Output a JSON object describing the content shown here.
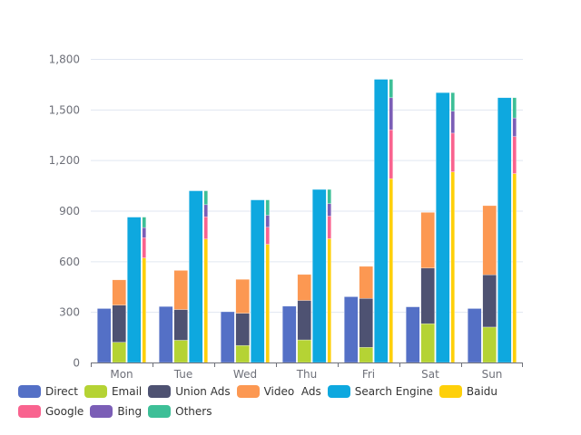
{
  "chart_data": {
    "type": "bar",
    "title": "",
    "xlabel": "",
    "ylabel": "",
    "categories": [
      "Mon",
      "Tue",
      "Wed",
      "Thu",
      "Fri",
      "Sat",
      "Sun"
    ],
    "ylim": [
      0,
      1800
    ],
    "yticks": [
      0,
      300,
      600,
      900,
      1200,
      1500,
      1800
    ],
    "ytick_labels": [
      "0",
      "300",
      "600",
      "900",
      "1,200",
      "1,500",
      "1,800"
    ],
    "grid": true,
    "legend_position": "bottom-left",
    "series": [
      {
        "name": "Direct",
        "stack": null,
        "color": "#5470c6",
        "values": [
          320,
          332,
          301,
          334,
          390,
          330,
          320
        ]
      },
      {
        "name": "Email",
        "stack": "Ad",
        "color": "#b5d334",
        "values": [
          120,
          132,
          101,
          134,
          90,
          230,
          210
        ]
      },
      {
        "name": "Union Ads",
        "stack": "Ad",
        "color": "#4e5272",
        "values": [
          220,
          182,
          191,
          234,
          290,
          330,
          310
        ]
      },
      {
        "name": "Video  Ads",
        "stack": "Ad",
        "color": "#fc9852",
        "values": [
          150,
          232,
          201,
          154,
          190,
          330,
          410
        ]
      },
      {
        "name": "Search Engine",
        "stack": null,
        "color": "#0ea8df",
        "values": [
          862,
          1018,
          964,
          1026,
          1679,
          1600,
          1570
        ]
      },
      {
        "name": "Baidu",
        "stack": "Search Engine",
        "color": "#fed00a",
        "values": [
          620,
          732,
          701,
          734,
          1090,
          1130,
          1120
        ]
      },
      {
        "name": "Google",
        "stack": "Search Engine",
        "color": "#f9638f",
        "values": [
          120,
          132,
          101,
          134,
          290,
          230,
          220
        ]
      },
      {
        "name": "Bing",
        "stack": "Search Engine",
        "color": "#7b5eb6",
        "values": [
          60,
          72,
          71,
          74,
          190,
          130,
          110
        ]
      },
      {
        "name": "Others",
        "stack": "Search Engine",
        "color": "#3dbf97",
        "values": [
          62,
          82,
          91,
          84,
          109,
          110,
          120
        ]
      }
    ]
  }
}
